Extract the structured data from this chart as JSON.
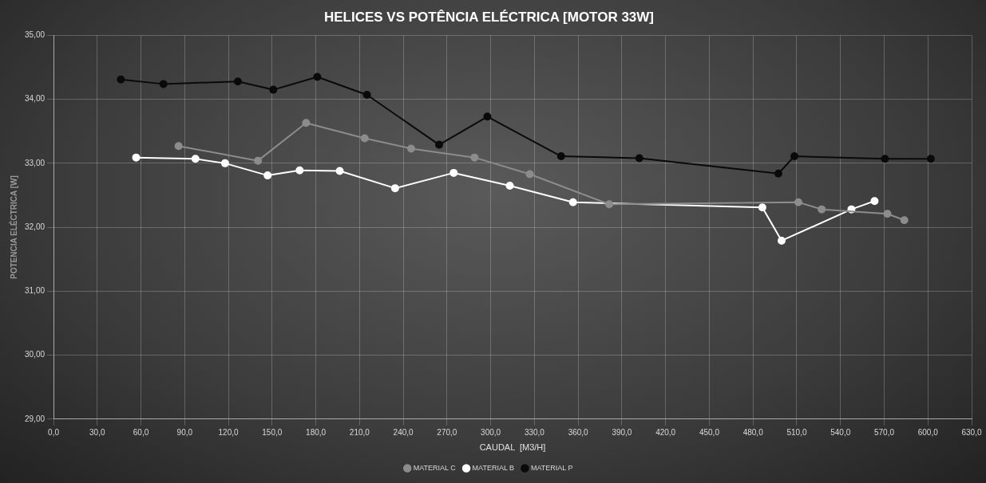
{
  "chart_data": {
    "type": "line",
    "title": "HELICES VS POTÊNCIA ELÉCTRICA [MOTOR 33W]",
    "xlabel": "CAUDAL  [M3/H]",
    "ylabel": "POTENCIA ELÉCTRICA [W]",
    "series": [
      {
        "name": "MATERIAL C",
        "color": "#8c8c8c",
        "x": [
          85.8,
          140.3,
          173.3,
          213.5,
          245.4,
          288.9,
          326.8,
          381.3,
          511.1,
          527.1,
          572.2,
          583.8
        ],
        "values": [
          33.27,
          33.04,
          33.63,
          33.39,
          33.23,
          33.09,
          32.83,
          32.36,
          32.39,
          32.28,
          32.21,
          32.11
        ]
      },
      {
        "name": "MATERIAL B",
        "color": "#ffffff",
        "x": [
          56.7,
          97.4,
          117.7,
          146.9,
          168.9,
          196.4,
          234.4,
          274.6,
          313.1,
          356.5,
          486.4,
          499.6,
          547.5,
          563.4
        ],
        "values": [
          33.09,
          33.07,
          33.0,
          32.81,
          32.89,
          32.88,
          32.61,
          32.85,
          32.65,
          32.39,
          32.31,
          31.79,
          32.28,
          32.41
        ]
      },
      {
        "name": "MATERIAL P",
        "color": "#0a0a0a",
        "x": [
          46.2,
          75.4,
          126.5,
          150.8,
          181.0,
          215.1,
          264.6,
          297.7,
          348.3,
          402.0,
          497.4,
          508.4,
          570.5,
          602.0
        ],
        "values": [
          34.31,
          34.24,
          34.28,
          34.15,
          34.35,
          34.07,
          33.29,
          33.73,
          33.11,
          33.08,
          32.84,
          33.11,
          33.07,
          33.07
        ]
      }
    ],
    "xlim": [
      0,
      630
    ],
    "xticks": [
      {
        "value": 0,
        "label": "0,0"
      },
      {
        "value": 30,
        "label": "30,0"
      },
      {
        "value": 60,
        "label": "60,0"
      },
      {
        "value": 90,
        "label": "90,0"
      },
      {
        "value": 120,
        "label": "120,0"
      },
      {
        "value": 150,
        "label": "150,0"
      },
      {
        "value": 180,
        "label": "180,0"
      },
      {
        "value": 210,
        "label": "210,0"
      },
      {
        "value": 240,
        "label": "240,0"
      },
      {
        "value": 270,
        "label": "270,0"
      },
      {
        "value": 300,
        "label": "300,0"
      },
      {
        "value": 330,
        "label": "330,0"
      },
      {
        "value": 360,
        "label": "360,0"
      },
      {
        "value": 390,
        "label": "390,0"
      },
      {
        "value": 420,
        "label": "420,0"
      },
      {
        "value": 450,
        "label": "450,0"
      },
      {
        "value": 480,
        "label": "480,0"
      },
      {
        "value": 510,
        "label": "510,0"
      },
      {
        "value": 540,
        "label": "540,0"
      },
      {
        "value": 570,
        "label": "570,0"
      },
      {
        "value": 600,
        "label": "600,0"
      },
      {
        "value": 630,
        "label": "630,0"
      }
    ],
    "ylim": [
      29,
      35
    ],
    "yticks": [
      {
        "value": 29,
        "label": "29,00"
      },
      {
        "value": 30,
        "label": "30,00"
      },
      {
        "value": 31,
        "label": "31,00"
      },
      {
        "value": 32,
        "label": "32,00"
      },
      {
        "value": 33,
        "label": "33,00"
      },
      {
        "value": 34,
        "label": "34,00"
      },
      {
        "value": 35,
        "label": "35,00"
      }
    ],
    "grid": true,
    "legend": "bottom",
    "marker": "circle",
    "line_style": "solid"
  }
}
